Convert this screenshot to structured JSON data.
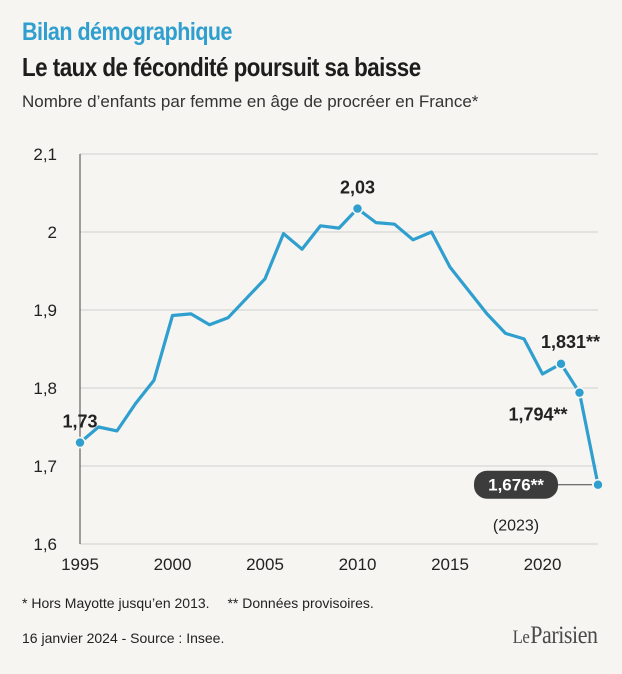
{
  "header": {
    "kicker": "Bilan démographique",
    "title": "Le taux de fécondité poursuit sa baisse",
    "subtitle": "Nombre d’enfants par femme en âge de procréer en France*"
  },
  "footer": {
    "note_1": "* Hors Mayotte jusqu’en 2013.",
    "note_2": "** Données provisoires.",
    "source": "16 janvier 2024 - Source : Insee.",
    "logo_le": "Le",
    "logo_name": "Parisien"
  },
  "colors": {
    "line": "#2f9fcf",
    "kicker": "#2f9fcf",
    "badge": "#3c3c3c",
    "grid": "#cfcfcf",
    "background": "#f6f5f1"
  },
  "chart_data": {
    "type": "line",
    "x": [
      1995,
      1996,
      1997,
      1998,
      1999,
      2000,
      2001,
      2002,
      2003,
      2004,
      2005,
      2006,
      2007,
      2008,
      2009,
      2010,
      2011,
      2012,
      2013,
      2014,
      2015,
      2016,
      2017,
      2018,
      2019,
      2020,
      2021,
      2022,
      2023
    ],
    "series": [
      {
        "values": [
          1.73,
          1.75,
          1.745,
          1.78,
          1.81,
          1.893,
          1.895,
          1.881,
          1.89,
          1.915,
          1.94,
          1.998,
          1.978,
          2.008,
          2.005,
          2.03,
          2.012,
          2.01,
          1.99,
          2.0,
          1.955,
          1.925,
          1.895,
          1.87,
          1.863,
          1.818,
          1.831,
          1.794,
          1.676
        ]
      }
    ],
    "xticks": [
      "1995",
      "2000",
      "2005",
      "2010",
      "2015",
      "2020"
    ],
    "yticks": [
      "1,6",
      "1,7",
      "1,8",
      "1,9",
      "2",
      "2,1"
    ],
    "xlim": [
      1995,
      2023
    ],
    "ylim": [
      1.6,
      2.1
    ],
    "grid": "horizontal",
    "annotations": [
      {
        "x": 1995,
        "y": 1.73,
        "text": "1,73",
        "style": "plain"
      },
      {
        "x": 2010,
        "y": 2.03,
        "text": "2,03",
        "style": "plain"
      },
      {
        "x": 2021,
        "y": 1.831,
        "text": "1,831**",
        "style": "plain"
      },
      {
        "x": 2022,
        "y": 1.794,
        "text": "1,794**",
        "style": "plain"
      },
      {
        "x": 2023,
        "y": 1.676,
        "text": "1,676**",
        "style": "badge",
        "subtext": "(2023)"
      }
    ]
  }
}
